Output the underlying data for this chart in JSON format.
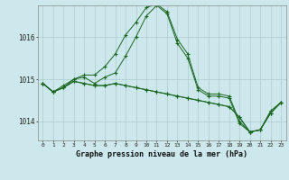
{
  "title": "Graphe pression niveau de la mer (hPa)",
  "yticks": [
    1014,
    1015,
    1016
  ],
  "ylim": [
    1013.55,
    1016.75
  ],
  "xlim": [
    -0.5,
    23.5
  ],
  "bg_color": "#cce8ec",
  "grid_color": "#aacccc",
  "line_color": "#1a6620",
  "lines": [
    [
      1014.9,
      1014.7,
      1014.8,
      1015.0,
      1015.1,
      1015.1,
      1015.3,
      1015.6,
      1016.05,
      1016.35,
      1016.7,
      1016.78,
      1016.6,
      1015.95,
      1015.6,
      1014.8,
      1014.65,
      1014.65,
      1014.6,
      1014.0,
      1013.75,
      1013.8,
      1014.25,
      1014.45
    ],
    [
      1014.9,
      1014.7,
      1014.85,
      1015.0,
      1015.05,
      1014.9,
      1015.05,
      1015.15,
      1015.55,
      1016.0,
      1016.5,
      1016.75,
      1016.55,
      1015.85,
      1015.5,
      1014.75,
      1014.6,
      1014.6,
      1014.55,
      1013.95,
      1013.75,
      1013.8,
      1014.2,
      1014.45
    ],
    [
      1014.9,
      1014.7,
      1014.8,
      1014.95,
      1014.9,
      1014.85,
      1014.85,
      1014.9,
      1014.85,
      1014.8,
      1014.75,
      1014.7,
      1014.65,
      1014.6,
      1014.55,
      1014.5,
      1014.45,
      1014.4,
      1014.35,
      1014.1,
      1013.75,
      1013.8,
      1014.2,
      1014.45
    ],
    [
      1014.9,
      1014.7,
      1014.8,
      1014.95,
      1014.9,
      1014.85,
      1014.85,
      1014.9,
      1014.85,
      1014.8,
      1014.75,
      1014.7,
      1014.65,
      1014.6,
      1014.55,
      1014.5,
      1014.45,
      1014.4,
      1014.35,
      1014.1,
      1013.75,
      1013.8,
      1014.2,
      1014.45
    ]
  ]
}
